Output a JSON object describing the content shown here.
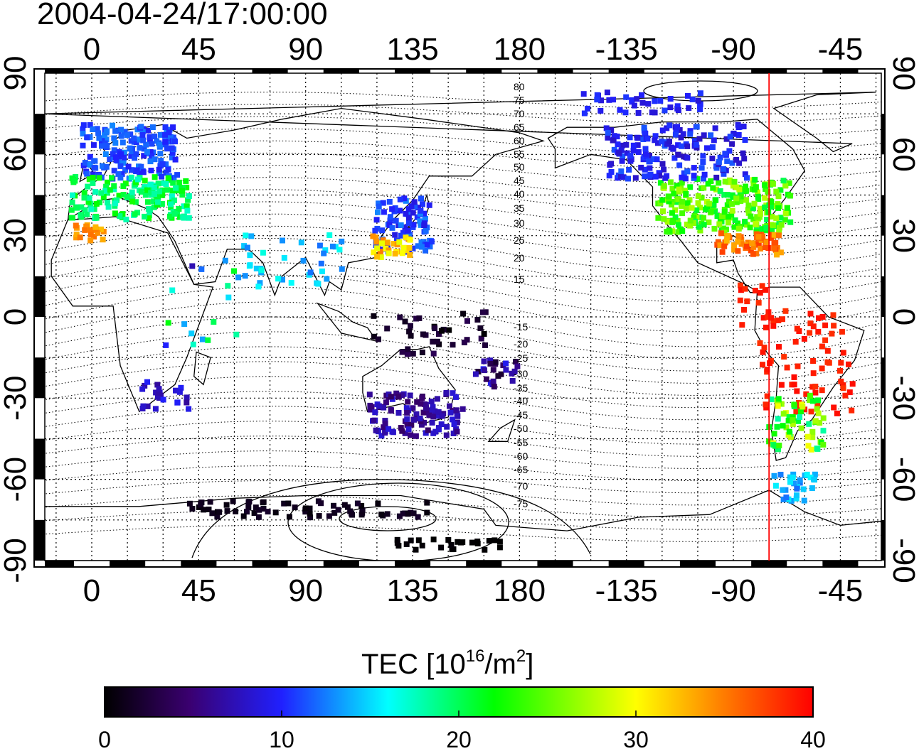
{
  "title": "2004-04-24/17:00:00",
  "top_lon_ticks": [
    "0",
    "45",
    "90",
    "135",
    "180",
    "-135",
    "-90",
    "-45"
  ],
  "bottom_lon_ticks": [
    "0",
    "45",
    "90",
    "135",
    "180",
    "-135",
    "-90",
    "-45"
  ],
  "left_lat_ticks": [
    "90",
    "60",
    "30",
    "0",
    "-30",
    "-60",
    "-90"
  ],
  "right_lat_ticks": [
    "90",
    "60",
    "30",
    "0",
    "-30",
    "-60",
    "-90"
  ],
  "contour_labels_north": [
    "80",
    "75",
    "70",
    "65",
    "60",
    "55",
    "50",
    "45",
    "40",
    "35",
    "30",
    "25",
    "20",
    "15"
  ],
  "contour_labels_south": [
    "-15",
    "-20",
    "-25",
    "-30",
    "-35",
    "-40",
    "-45",
    "-50",
    "-55",
    "-60",
    "-65",
    "-70",
    "-75"
  ],
  "colorbar": {
    "label_main": "TEC  [10",
    "label_exp": "16",
    "label_mid": "/m",
    "label_exp2": "2",
    "label_end": "]",
    "ticks": [
      "0",
      "10",
      "20",
      "30",
      "40"
    ],
    "min": 0,
    "max": 40
  },
  "map": {
    "lon_center": 0,
    "lat_range": [
      -90,
      90
    ],
    "meridian_marker_lon": -75,
    "marker_color": "#ff0000",
    "grid": true,
    "palette": [
      "#000000",
      "#4b0082",
      "#0000ff",
      "#00ffff",
      "#00ff00",
      "#ffff00",
      "#ff8000",
      "#ff0000"
    ]
  }
}
